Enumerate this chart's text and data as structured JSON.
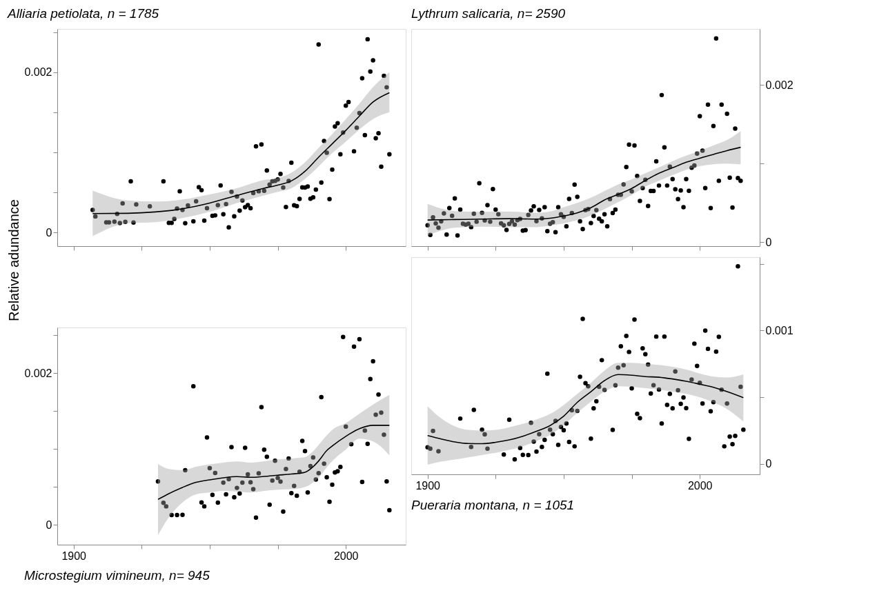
{
  "chart_data": [
    {
      "type": "scatter",
      "title": "Alliaria petiolata, n = 1785",
      "ylabel": "Relative adundance",
      "tick_labels": "y",
      "xlim": [
        1894,
        2022
      ],
      "xticks": [
        1900,
        {
          "value": 1925,
          "label": null
        },
        {
          "value": 1950,
          "label": null
        },
        {
          "value": 1975,
          "label": null
        },
        2000
      ],
      "ylim": [
        -0.00017,
        0.00254
      ],
      "yticks": [
        0,
        {
          "value": 0.0005,
          "label": null
        },
        {
          "value": 0.001,
          "label": null
        },
        {
          "value": 0.0015,
          "label": null
        },
        0.002,
        {
          "value": 0.0025,
          "label": null
        }
      ],
      "series": [
        {
          "marker": "circle",
          "color": "#000000",
          "x": [
            1907,
            1908,
            1912,
            1913,
            1915,
            1916,
            1917,
            1918,
            1919,
            1921,
            1922,
            1923,
            1928,
            1933,
            1935,
            1936,
            1937,
            1938,
            1939,
            1940,
            1941,
            1942,
            1944,
            1945,
            1946,
            1947,
            1948,
            1949,
            1951,
            1952,
            1953,
            1954,
            1955,
            1956,
            1957,
            1958,
            1959,
            1960,
            1961,
            1962,
            1963,
            1964,
            1965,
            1966,
            1967,
            1968,
            1969,
            1970,
            1971,
            1972,
            1973,
            1974,
            1975,
            1976,
            1977,
            1978,
            1979,
            1980,
            1981,
            1982,
            1983,
            1984,
            1985,
            1986,
            1987,
            1988,
            1989,
            1990,
            1991,
            1992,
            1993,
            1994,
            1995,
            1996,
            1997,
            1998,
            1999,
            2000,
            2001,
            2003,
            2004,
            2005,
            2006,
            2007,
            2008,
            2009,
            2010,
            2011,
            2012,
            2013,
            2014,
            2015,
            2016
          ],
          "values": [
            0.000281,
            0.000201,
            0.000126,
            0.000126,
            0.000136,
            0.000232,
            0.000118,
            0.000363,
            0.000134,
            0.000638,
            0.000124,
            0.00035,
            0.000327,
            0.000638,
            0.000121,
            0.000121,
            0.00017,
            0.000299,
            0.000515,
            0.000281,
            0.000116,
            0.000337,
            0.000139,
            0.000389,
            0.000566,
            0.000528,
            0.000149,
            0.000304,
            0.000208,
            0.000214,
            0.000342,
            0.000587,
            0.000227,
            0.000355,
            6.4e-05,
            0.000507,
            0.000203,
            0.00045,
            0.000273,
            0.000399,
            0.000317,
            0.000342,
            0.000304,
            0.000492,
            0.001076,
            0.000515,
            0.001099,
            0.00052,
            0.000775,
            0.000597,
            0.000638,
            0.000644,
            0.000662,
            0.000731,
            0.000561,
            0.000319,
            0.000644,
            0.00087,
            0.00034,
            0.000329,
            0.00042,
            0.000564,
            0.000561,
            0.000574,
            0.000422,
            0.000438,
            0.000535,
            0.002347,
            0.000623,
            0.001143,
            0.000996,
            0.000417,
            0.000785,
            0.001323,
            0.001364,
            0.000976,
            0.001248,
            0.001583,
            0.001629,
            0.001014,
            0.001308,
            0.00149,
            0.001925,
            0.001215,
            0.002412,
            0.002008,
            0.002149,
            0.001176,
            0.001238,
            0.000821,
            0.001956,
            0.001812,
            0.000976
          ]
        },
        {
          "type": "line",
          "color": "#000000",
          "x": [
            1907,
            1920,
            1930,
            1940,
            1950,
            1960,
            1970,
            1975,
            1980,
            1985,
            1990,
            1995,
            2000,
            2005,
            2010,
            2016
          ],
          "values": [
            0.000237,
            0.00024,
            0.000257,
            0.000296,
            0.000368,
            0.000463,
            0.000553,
            0.000592,
            0.000644,
            0.000764,
            0.00094,
            0.001107,
            0.001274,
            0.001454,
            0.001629,
            0.001745
          ],
          "upper": [
            0.000523,
            0.000399,
            0.000386,
            0.000412,
            0.000476,
            0.000553,
            0.000656,
            0.000677,
            0.000746,
            0.000875,
            0.001055,
            0.001228,
            0.001416,
            0.001609,
            0.001815,
            0.002
          ],
          "lower": [
            -4.6e-05,
            0.000116,
            0.000129,
            0.00018,
            0.000257,
            0.000368,
            0.000463,
            0.000507,
            0.000553,
            0.000669,
            0.000824,
            0.000991,
            0.001133,
            0.001287,
            0.001416,
            0.001501
          ]
        }
      ]
    },
    {
      "type": "scatter",
      "title": "Lythrum salicaria, n= 2590",
      "tick_labels": "y",
      "xlim": [
        1894,
        2022
      ],
      "xticks": [
        1900,
        {
          "value": 1925,
          "label": null
        },
        {
          "value": 1950,
          "label": null
        },
        {
          "value": 1975,
          "label": null
        },
        2000
      ],
      "ylim": [
        -5e-05,
        0.00271
      ],
      "yticks": [
        0,
        {
          "value": 0.001,
          "label": null
        },
        0.002
      ],
      "series": [
        {
          "marker": "circle",
          "color": "#000000",
          "x": [
            1900,
            1901,
            1902,
            1903,
            1904,
            1905,
            1906,
            1907,
            1908,
            1909,
            1910,
            1911,
            1912,
            1913,
            1914,
            1915,
            1916,
            1917,
            1918,
            1919,
            1920,
            1921,
            1922,
            1923,
            1924,
            1925,
            1926,
            1927,
            1928,
            1929,
            1930,
            1931,
            1932,
            1933,
            1934,
            1935,
            1936,
            1937,
            1938,
            1939,
            1940,
            1941,
            1942,
            1943,
            1944,
            1945,
            1946,
            1947,
            1948,
            1949,
            1950,
            1951,
            1952,
            1953,
            1954,
            1955,
            1956,
            1957,
            1958,
            1959,
            1960,
            1961,
            1962,
            1963,
            1964,
            1965,
            1966,
            1967,
            1968,
            1969,
            1970,
            1971,
            1972,
            1973,
            1974,
            1975,
            1976,
            1977,
            1978,
            1979,
            1980,
            1981,
            1982,
            1983,
            1984,
            1985,
            1986,
            1987,
            1988,
            1989,
            1990,
            1991,
            1992,
            1993,
            1994,
            1995,
            1996,
            1997,
            1998,
            1999,
            2000,
            2001,
            2002,
            2003,
            2004,
            2005,
            2006,
            2007,
            2008,
            2010,
            2011,
            2012,
            2013,
            2014,
            2015
          ],
          "values": [
            0.000215,
            9.3e-05,
            0.000316,
            0.00024,
            0.000184,
            0.000266,
            0.000367,
            9.6e-05,
            0.000435,
            0.000336,
            0.000556,
            8.5e-05,
            0.000415,
            0.000234,
            0.000223,
            0.000234,
            0.000192,
            0.000362,
            0.00026,
            0.000749,
            0.000373,
            0.000277,
            0.000472,
            0.00026,
            0.000675,
            0.000415,
            0.000356,
            0.00024,
            0.000215,
            0.000155,
            0.000232,
            0.000266,
            0.000223,
            0.00028,
            0.000297,
            0.000147,
            0.000153,
            0.000347,
            0.000404,
            0.000455,
            0.000268,
            0.00041,
            0.000302,
            0.000446,
            0.000141,
            0.000234,
            0.000254,
            0.000127,
            0.000446,
            0.000356,
            0.000322,
            0.000201,
            0.000551,
            0.00037,
            0.000732,
            0.000576,
            0.000266,
            0.000167,
            0.000407,
            0.000421,
            0.000243,
            0.000333,
            0.000407,
            0.000299,
            0.000266,
            0.000356,
            0.000201,
            0.000548,
            0.00037,
            0.000415,
            0.000602,
            0.000602,
            0.000734,
            0.000955,
            0.00124,
            0.000647,
            0.001229,
            0.000842,
            0.000525,
            0.000689,
            0.000794,
            0.00046,
            0.00065,
            0.00065,
            0.001028,
            0.00072,
            0.00187,
            0.001206,
            0.00072,
            0.00096,
            0.000802,
            0.000672,
            0.000548,
            0.000658,
            0.000446,
            0.000802,
            0.000653,
            0.000946,
            0.000975,
            0.001127,
            0.001602,
            0.001164,
            0.000689,
            0.001749,
            0.000435,
            0.001477,
            0.00259,
            0.00078,
            0.001749,
            0.001633,
            0.000819,
            0.000441,
            0.001444,
            0.000816,
            0.00078
          ]
        },
        {
          "type": "line",
          "color": "#000000",
          "x": [
            1900,
            1910,
            1920,
            1930,
            1940,
            1945,
            1950,
            1955,
            1960,
            1965,
            1970,
            1975,
            1980,
            1985,
            1990,
            1995,
            2000,
            2005,
            2010,
            2015
          ],
          "values": [
            0.000282,
            0.000288,
            0.000294,
            0.000299,
            0.000294,
            0.000305,
            0.000333,
            0.000373,
            0.000438,
            0.000537,
            0.000607,
            0.000684,
            0.000785,
            0.000876,
            0.000946,
            0.001017,
            0.001068,
            0.001116,
            0.001164,
            0.001206
          ],
          "upper": [
            0.000486,
            0.000395,
            0.000387,
            0.00039,
            0.000373,
            0.00039,
            0.000446,
            0.0005,
            0.000565,
            0.00065,
            0.000734,
            0.0008,
            0.000876,
            0.00095,
            0.001031,
            0.0011,
            0.001164,
            0.00123,
            0.001299,
            0.001412
          ],
          "lower": [
            8.5e-05,
            0.000184,
            0.000198,
            0.000192,
            0.000192,
            0.00021,
            0.00024,
            0.00028,
            0.000339,
            0.00042,
            0.000508,
            0.0006,
            0.000706,
            0.00078,
            0.000853,
            0.00092,
            0.000966,
            0.00099,
            0.001,
            0.000989
          ]
        }
      ]
    },
    {
      "type": "scatter",
      "title": "Microstegium vimineum, n= 945",
      "xlim": [
        1894,
        2022
      ],
      "xticks": [
        1900,
        {
          "value": 1925,
          "label": null
        },
        {
          "value": 1950,
          "label": null
        },
        {
          "value": 1975,
          "label": null
        },
        2000
      ],
      "ylim": [
        -0.00026,
        0.0026
      ],
      "yticks": [
        0,
        {
          "value": 0.0005,
          "label": null
        },
        {
          "value": 0.001,
          "label": null
        },
        {
          "value": 0.0015,
          "label": null
        },
        0.002,
        {
          "value": 0.0025,
          "label": null
        }
      ],
      "series": [
        {
          "marker": "circle",
          "color": "#000000",
          "x": [
            1931,
            1933,
            1934,
            1936,
            1938,
            1940,
            1941,
            1944,
            1947,
            1948,
            1949,
            1950,
            1951,
            1952,
            1953,
            1955,
            1956,
            1957,
            1958,
            1959,
            1960,
            1961,
            1962,
            1963,
            1964,
            1965,
            1966,
            1967,
            1968,
            1969,
            1970,
            1971,
            1972,
            1973,
            1974,
            1975,
            1976,
            1977,
            1978,
            1979,
            1980,
            1981,
            1982,
            1983,
            1984,
            1985,
            1986,
            1987,
            1988,
            1989,
            1990,
            1991,
            1992,
            1993,
            1994,
            1995,
            1996,
            1997,
            1998,
            1999,
            2000,
            2002,
            2003,
            2005,
            2006,
            2007,
            2008,
            2009,
            2010,
            2011,
            2012,
            2013,
            2014,
            2015,
            2016
          ],
          "values": [
            0.000573,
            0.000291,
            0.000245,
            0.00013,
            0.00013,
            0.000133,
            0.000721,
            0.001827,
            0.000297,
            0.000245,
            0.001152,
            0.000748,
            0.000397,
            0.000685,
            0.000294,
            0.000558,
            0.000403,
            0.000603,
            0.001024,
            0.000364,
            0.000488,
            0.000415,
            0.000558,
            0.001015,
            0.000667,
            0.000561,
            0.00047,
            9.7e-05,
            0.000679,
            0.001552,
            0.000991,
            0.000897,
            0.000267,
            0.000585,
            0.000845,
            0.000618,
            0.00057,
            0.000176,
            0.000736,
            0.000876,
            0.000418,
            0.000515,
            0.000385,
            0.0007,
            0.001106,
            0.000973,
            0.000427,
            0.000776,
            0.000888,
            0.000597,
            0.000682,
            0.001682,
            0.000806,
            0.000627,
            0.000306,
            0.00053,
            0.000691,
            0.000706,
            0.000764,
            0.002476,
            0.001294,
            0.001064,
            0.002348,
            0.002445,
            0.000567,
            0.001242,
            0.001067,
            0.001921,
            0.002155,
            0.001452,
            0.001718,
            0.001479,
            0.001188,
            0.000573,
            0.000194
          ]
        },
        {
          "type": "line",
          "color": "#000000",
          "x": [
            1931,
            1935,
            1940,
            1945,
            1950,
            1955,
            1960,
            1965,
            1970,
            1975,
            1980,
            1985,
            1988,
            1990,
            1993,
            1995,
            2000,
            2005,
            2010,
            2016
          ],
          "values": [
            0.000336,
            0.000412,
            0.000494,
            0.000561,
            0.000594,
            0.000621,
            0.000636,
            0.000627,
            0.000639,
            0.000655,
            0.00067,
            0.000694,
            0.000767,
            0.000842,
            0.000979,
            0.001039,
            0.001167,
            0.001267,
            0.001312,
            0.001312
          ],
          "upper": [
            0.000803,
            0.000736,
            0.000721,
            0.000767,
            0.000797,
            0.000821,
            0.000836,
            0.000821,
            0.000839,
            0.000864,
            0.000876,
            0.000894,
            0.00097,
            0.001055,
            0.00118,
            0.001252,
            0.001342,
            0.001464,
            0.001585,
            0.001712
          ],
          "lower": [
            -0.000133,
            0.0001,
            0.000297,
            0.000403,
            0.000427,
            0.000448,
            0.000439,
            0.000427,
            0.000448,
            0.000464,
            0.00047,
            0.0005,
            0.00056,
            0.000621,
            0.00076,
            0.000842,
            0.000994,
            0.001136,
            0.0011,
            0.000918
          ]
        }
      ]
    },
    {
      "type": "scatter",
      "title": "Pueraria montana, n = 1051",
      "xlim": [
        1894,
        2022
      ],
      "xticks": [
        1900,
        {
          "value": 1925,
          "label": null
        },
        {
          "value": 1950,
          "label": null
        },
        {
          "value": 1975,
          "label": null
        },
        2000
      ],
      "ylim": [
        -7.8e-05,
        0.00155
      ],
      "yticks": [
        0,
        {
          "value": 0.0005,
          "label": null
        },
        0.001,
        {
          "value": 0.0015,
          "label": null
        }
      ],
      "series": [
        {
          "marker": "circle",
          "color": "#000000",
          "x": [
            1900,
            1901,
            1902,
            1904,
            1912,
            1916,
            1917,
            1920,
            1921,
            1922,
            1928,
            1930,
            1932,
            1934,
            1935,
            1937,
            1938,
            1939,
            1940,
            1941,
            1942,
            1943,
            1944,
            1945,
            1946,
            1947,
            1948,
            1949,
            1950,
            1951,
            1952,
            1953,
            1954,
            1955,
            1956,
            1957,
            1958,
            1959,
            1960,
            1961,
            1962,
            1963,
            1964,
            1965,
            1968,
            1969,
            1970,
            1971,
            1972,
            1973,
            1974,
            1975,
            1976,
            1977,
            1978,
            1979,
            1980,
            1981,
            1982,
            1983,
            1984,
            1985,
            1986,
            1987,
            1988,
            1989,
            1990,
            1991,
            1992,
            1993,
            1994,
            1995,
            1996,
            1997,
            1998,
            1999,
            2000,
            2001,
            2002,
            2003,
            2004,
            2005,
            2006,
            2007,
            2008,
            2009,
            2010,
            2011,
            2012,
            2013,
            2014,
            2015,
            2016
          ],
          "values": [
            0.000125,
            0.000115,
            0.000248,
            9.5e-05,
            0.00034,
            0.000128,
            0.000405,
            0.000257,
            0.000222,
            0.000115,
            7e-05,
            0.000332,
            3.5e-05,
            0.00012,
            6.8e-05,
            6.7e-05,
            0.000308,
            0.000167,
            9.2e-05,
            0.000223,
            0.000128,
            0.00018,
            0.000677,
            0.000257,
            0.000223,
            0.000322,
            0.000143,
            0.000277,
            0.000253,
            0.000303,
            0.000165,
            0.000403,
            0.000132,
            0.000397,
            0.000653,
            0.001087,
            0.000605,
            0.000582,
            0.00019,
            0.000417,
            0.00047,
            0.000578,
            0.000778,
            0.000555,
            0.000255,
            0.00059,
            0.000722,
            0.000882,
            0.00074,
            0.00096,
            0.00084,
            0.000567,
            0.001082,
            0.000375,
            0.000343,
            0.000867,
            0.000822,
            0.000745,
            0.000528,
            0.00059,
            0.000955,
            0.000558,
            0.000303,
            0.000955,
            0.000443,
            0.000525,
            0.000417,
            0.000693,
            0.000553,
            0.00045,
            0.000498,
            0.000418,
            0.000188,
            0.000633,
            0.000902,
            0.000735,
            0.000608,
            0.000453,
            0.001,
            0.000863,
            0.000395,
            0.000463,
            0.000842,
            0.000953,
            0.000557,
            0.000132,
            0.000453,
            0.000205,
            0.000148,
            0.00021,
            0.001482,
            0.000578,
            0.000257
          ]
        },
        {
          "type": "line",
          "color": "#000000",
          "x": [
            1900,
            1905,
            1910,
            1915,
            1920,
            1925,
            1930,
            1935,
            1940,
            1945,
            1950,
            1955,
            1960,
            1965,
            1970,
            1975,
            1980,
            1985,
            1990,
            1995,
            2000,
            2005,
            2010,
            2016
          ],
          "values": [
            0.000213,
            0.000187,
            0.000165,
            0.000153,
            0.000152,
            0.000162,
            0.00018,
            0.000208,
            0.000245,
            0.000288,
            0.000358,
            0.000462,
            0.000542,
            0.000625,
            0.00067,
            0.000665,
            0.000655,
            0.00065,
            0.000637,
            0.00062,
            0.000598,
            0.000575,
            0.000542,
            0.000497
          ],
          "upper": [
            0.000433,
            0.000342,
            0.000283,
            0.000255,
            0.00025,
            0.000255,
            0.000275,
            0.0003,
            0.000333,
            0.000375,
            0.000442,
            0.000525,
            0.000608,
            0.0007,
            0.000758,
            0.000758,
            0.00075,
            0.000742,
            0.000728,
            0.000708,
            0.000678,
            0.000655,
            0.000648,
            0.000672
          ],
          "lower": [
            -5e-06,
            1.7e-05,
            3.3e-05,
            5e-05,
            6.7e-05,
            8.3e-05,
            0.000105,
            0.000133,
            0.000172,
            0.000217,
            0.000292,
            0.000383,
            0.000467,
            0.000542,
            0.000582,
            0.000578,
            0.000568,
            0.000558,
            0.000542,
            0.000525,
            0.0005,
            0.000462,
            0.000412,
            0.000317
          ]
        }
      ]
    }
  ]
}
